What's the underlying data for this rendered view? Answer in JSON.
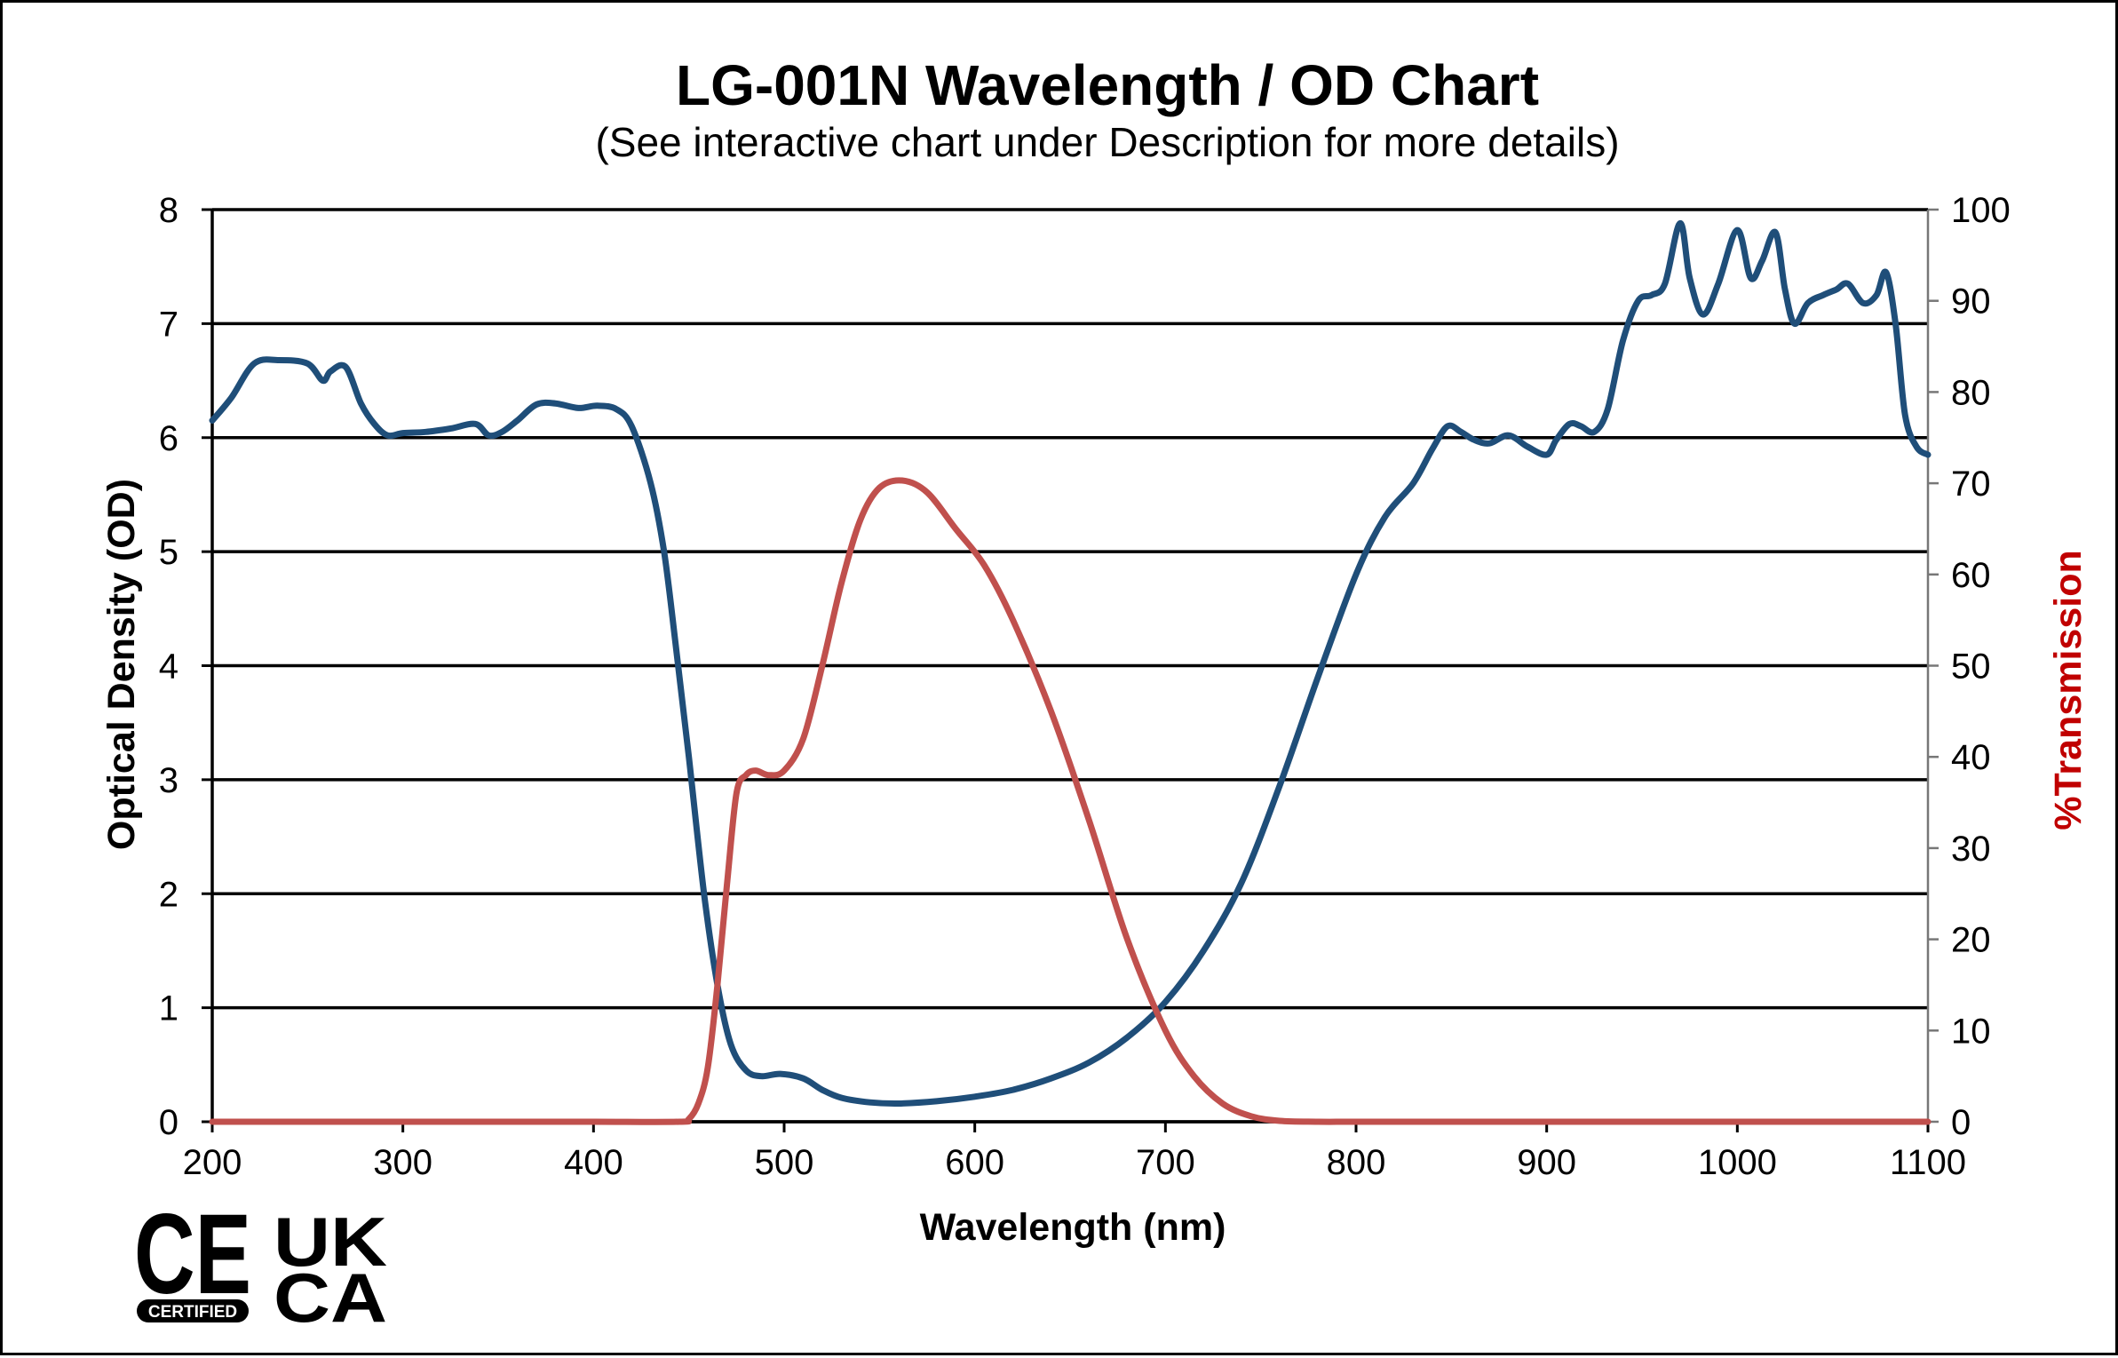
{
  "colors": {
    "od_series": "#1F4E79",
    "transmission_series": "#C0504D",
    "transmission_label": "#C00000",
    "grid": "#000000"
  },
  "logos": {
    "ce": "CE",
    "ce_badge": "CERTIFIED",
    "ukca_line1": "UK",
    "ukca_line2": "CA"
  },
  "chart_data": {
    "type": "line",
    "title": "LG-001N Wavelength / OD Chart",
    "subtitle": "(See interactive chart under Description for more details)",
    "xlabel": "Wavelength (nm)",
    "ylabel": "Optical Density (OD)",
    "y2label": "%Transmission",
    "xlim": [
      200,
      1100
    ],
    "ylim": [
      0,
      8
    ],
    "y2lim": [
      0,
      100
    ],
    "x_ticks": [
      200,
      300,
      400,
      500,
      600,
      700,
      800,
      900,
      1000,
      1100
    ],
    "y_ticks": [
      0,
      1,
      2,
      3,
      4,
      5,
      6,
      7,
      8
    ],
    "y2_ticks": [
      0,
      10,
      20,
      30,
      40,
      50,
      60,
      70,
      80,
      90,
      100
    ],
    "grid": true,
    "series": [
      {
        "name": "Optical Density",
        "axis": "left",
        "x": [
          200,
          210,
          222,
          235,
          250,
          258,
          262,
          270,
          278,
          285,
          292,
          300,
          312,
          325,
          338,
          345,
          352,
          360,
          370,
          380,
          392,
          402,
          412,
          420,
          430,
          437,
          443,
          450,
          458,
          465,
          472,
          480,
          488,
          498,
          510,
          520,
          530,
          545,
          560,
          580,
          600,
          620,
          640,
          660,
          680,
          700,
          720,
          740,
          760,
          780,
          800,
          815,
          830,
          840,
          848,
          855,
          862,
          870,
          880,
          890,
          900,
          905,
          912,
          918,
          925,
          932,
          940,
          948,
          955,
          962,
          970,
          975,
          982,
          990,
          1000,
          1007,
          1013,
          1020,
          1025,
          1030,
          1037,
          1045,
          1052,
          1058,
          1066,
          1073,
          1078,
          1083,
          1088,
          1094,
          1100
        ],
        "values": [
          6.15,
          6.35,
          6.65,
          6.68,
          6.65,
          6.5,
          6.58,
          6.62,
          6.3,
          6.12,
          6.02,
          6.04,
          6.05,
          6.08,
          6.12,
          6.02,
          6.05,
          6.15,
          6.29,
          6.3,
          6.26,
          6.28,
          6.25,
          6.1,
          5.6,
          5.0,
          4.2,
          3.2,
          2.0,
          1.2,
          0.68,
          0.45,
          0.4,
          0.42,
          0.38,
          0.28,
          0.21,
          0.17,
          0.16,
          0.18,
          0.22,
          0.28,
          0.38,
          0.52,
          0.74,
          1.05,
          1.5,
          2.1,
          2.95,
          3.9,
          4.8,
          5.3,
          5.6,
          5.9,
          6.1,
          6.05,
          5.98,
          5.95,
          6.02,
          5.92,
          5.85,
          5.98,
          6.12,
          6.1,
          6.05,
          6.25,
          6.85,
          7.2,
          7.25,
          7.35,
          7.88,
          7.4,
          7.08,
          7.35,
          7.82,
          7.4,
          7.55,
          7.8,
          7.3,
          7.0,
          7.18,
          7.25,
          7.3,
          7.35,
          7.18,
          7.25,
          7.45,
          7.0,
          6.2,
          5.92,
          5.85
        ]
      },
      {
        "name": "%Transmission",
        "axis": "right",
        "x": [
          200,
          250,
          300,
          350,
          400,
          445,
          450,
          455,
          460,
          465,
          470,
          475,
          480,
          485,
          492,
          500,
          510,
          520,
          530,
          540,
          550,
          562,
          575,
          590,
          605,
          620,
          640,
          660,
          680,
          700,
          715,
          730,
          745,
          760,
          780,
          800,
          850,
          900,
          950,
          1000,
          1050,
          1100
        ],
        "values": [
          0,
          0,
          0,
          0,
          0,
          0,
          0.3,
          2,
          6,
          15,
          26,
          36,
          38,
          38.5,
          38,
          38.5,
          42,
          50,
          59,
          66,
          69.5,
          70.3,
          69,
          65,
          61,
          55,
          45,
          33,
          20,
          10,
          5,
          2,
          0.6,
          0.1,
          0,
          0,
          0,
          0,
          0,
          0,
          0,
          0
        ]
      }
    ]
  }
}
